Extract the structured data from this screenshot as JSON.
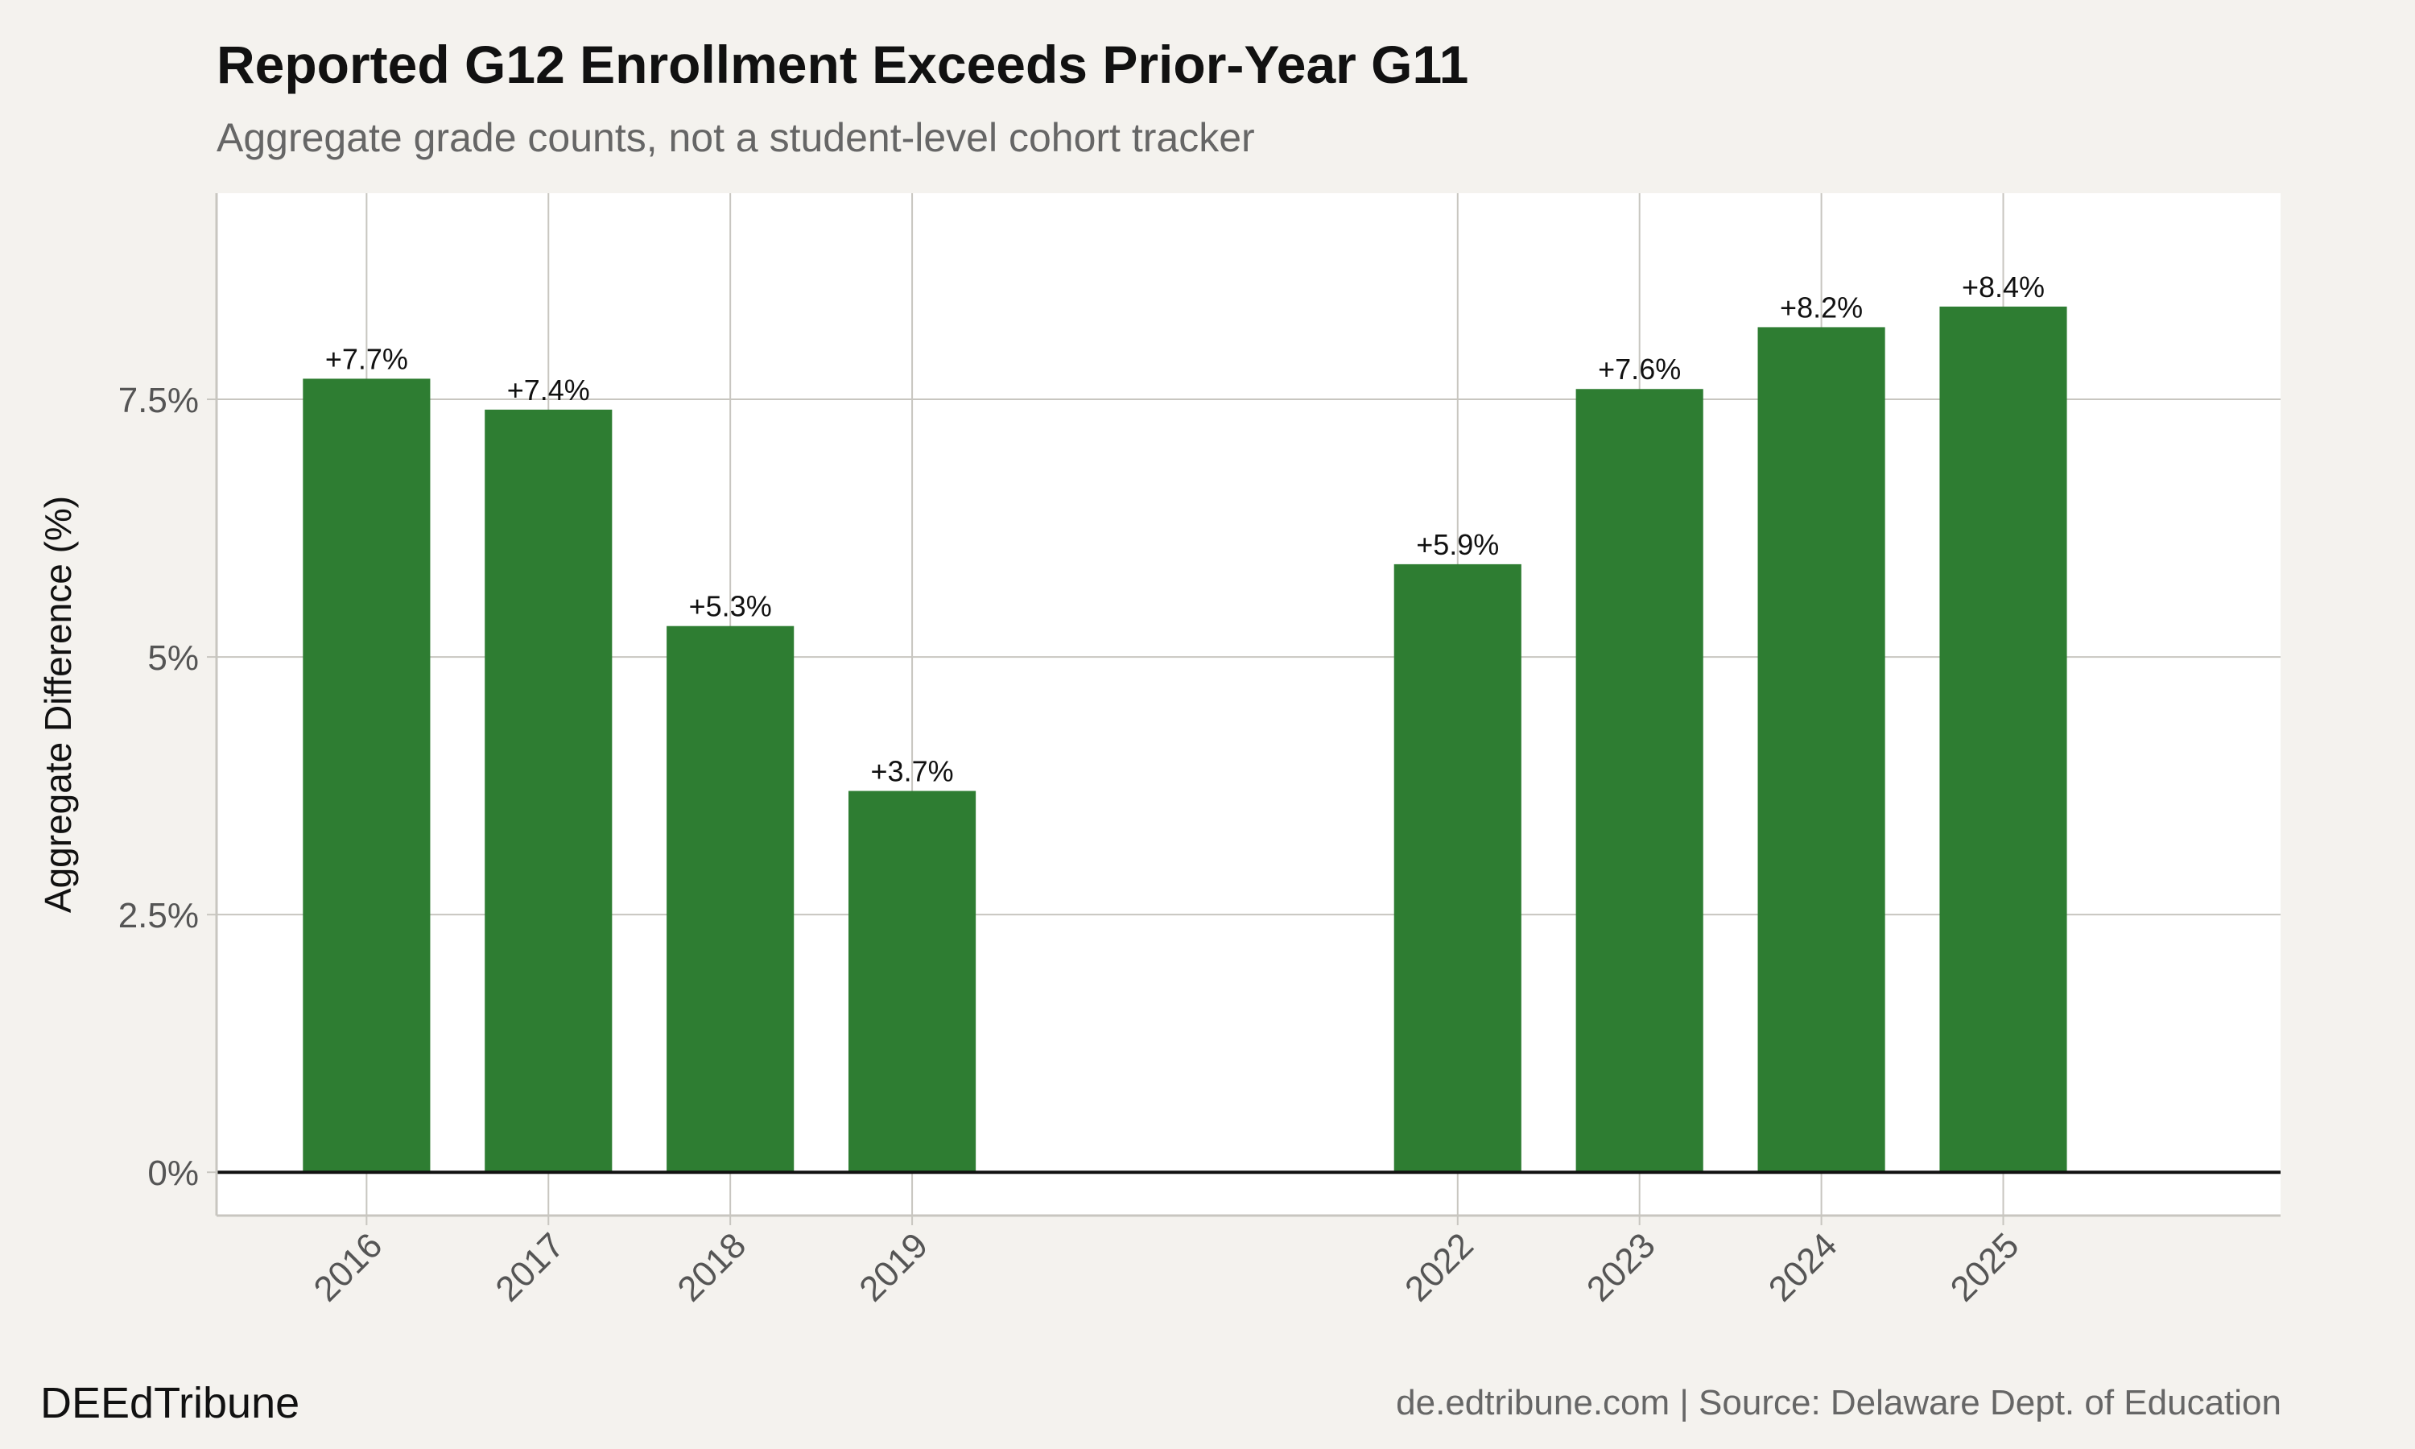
{
  "header": {
    "title": "Reported G12 Enrollment Exceeds Prior-Year G11",
    "subtitle": "Aggregate grade counts, not a student-level cohort tracker"
  },
  "footer": {
    "brand": "DEEdTribune",
    "source": "de.edtribune.com | Source: Delaware Dept. of Education"
  },
  "colors": {
    "bar": "#2e7d32",
    "panel": "#ffffff",
    "background": "#f4f2ee",
    "grid": "#c8c6c0",
    "zero_line": "#111111"
  },
  "chart_data": {
    "type": "bar",
    "title": "Reported G12 Enrollment Exceeds Prior-Year G11",
    "subtitle": "Aggregate grade counts, not a student-level cohort tracker",
    "xlabel": "",
    "ylabel": "Aggregate Difference (%)",
    "x": [
      2016,
      2017,
      2018,
      2019,
      2022,
      2023,
      2024,
      2025
    ],
    "categories": [
      "2016",
      "2017",
      "2018",
      "2019",
      "2022",
      "2023",
      "2024",
      "2025"
    ],
    "values": [
      7.7,
      7.4,
      5.3,
      3.7,
      5.9,
      7.6,
      8.2,
      8.4
    ],
    "data_labels": [
      "+7.7%",
      "+7.4%",
      "+5.3%",
      "+3.7%",
      "+5.9%",
      "+7.6%",
      "+8.2%",
      "+8.4%"
    ],
    "xlim": [
      2015.175,
      2026.525
    ],
    "ylim": [
      -0.42,
      9.5
    ],
    "yticks": [
      0,
      2.5,
      5,
      7.5
    ],
    "ytick_labels": [
      "0%",
      "2.5%",
      "5%",
      "7.5%"
    ],
    "grid": true,
    "legend": "none"
  }
}
